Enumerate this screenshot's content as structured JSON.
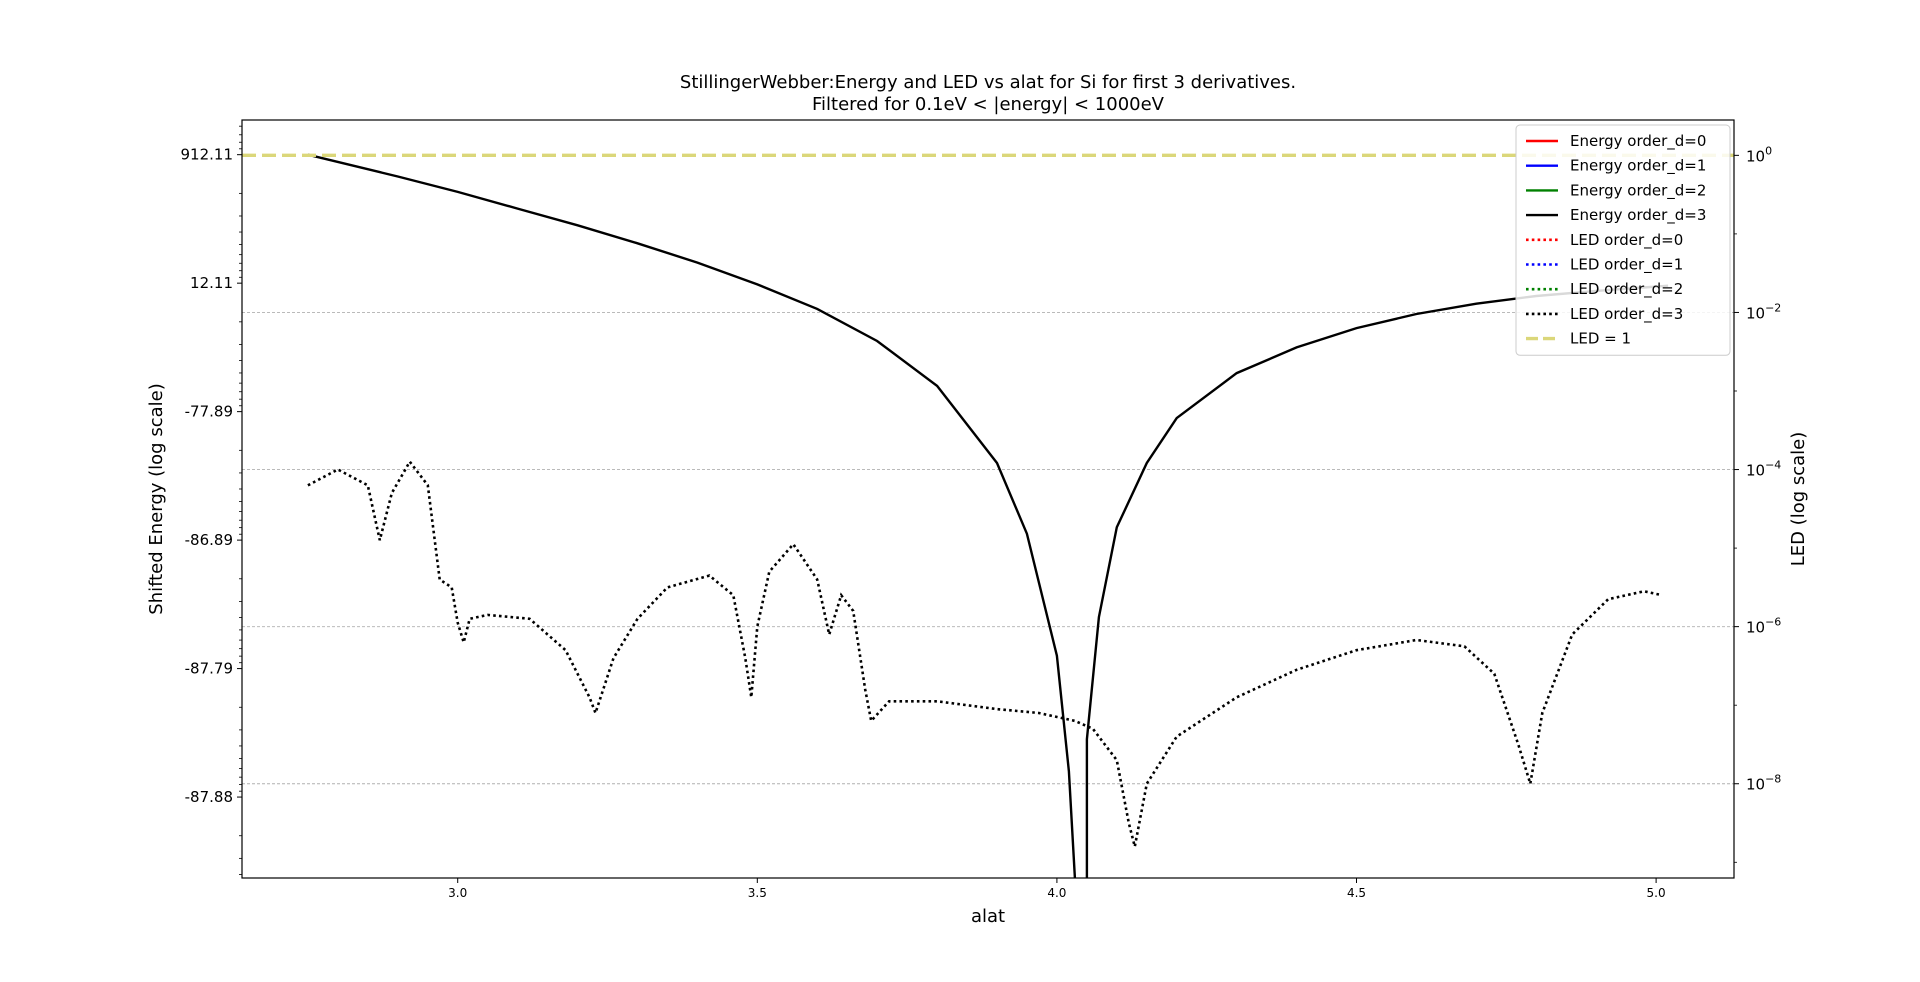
{
  "chart_data": {
    "type": "line",
    "title_line1": "StillingerWebber:Energy and LED vs alat for Si for first 3 derivatives.",
    "title_line2": "Filtered for 0.1eV < |energy| < 1000eV",
    "xlabel": "alat",
    "ylabel_left": "Shifted Energy (log scale)",
    "ylabel_right": "LED (log scale)",
    "xlim": [
      2.64,
      5.13
    ],
    "x_ticks": [
      3.0,
      3.5,
      4.0,
      4.5,
      5.0
    ],
    "x_tick_labels": [
      "3.0",
      "3.5",
      "4.0",
      "4.5",
      "5.0"
    ],
    "left_axis": {
      "scale": "symlog",
      "ticks": [
        {
          "label": "912.11",
          "pos": 0
        },
        {
          "label": "12.11",
          "pos": 1
        },
        {
          "label": "-77.89",
          "pos": 2
        },
        {
          "label": "-86.89",
          "pos": 3
        },
        {
          "label": "-87.79",
          "pos": 4
        },
        {
          "label": "-87.88",
          "pos": 5
        }
      ],
      "range_pos": [
        -0.27,
        5.63
      ]
    },
    "right_axis": {
      "scale": "log",
      "ticks": [
        {
          "label": "10^0",
          "base": "10",
          "exp": "0",
          "exp10": 0
        },
        {
          "label": "10^-2",
          "base": "10",
          "exp": "−2",
          "exp10": -2
        },
        {
          "label": "10^-4",
          "base": "10",
          "exp": "−4",
          "exp10": -4
        },
        {
          "label": "10^-6",
          "base": "10",
          "exp": "−6",
          "exp10": -6
        },
        {
          "label": "10^-8",
          "base": "10",
          "exp": "−8",
          "exp10": -8
        }
      ],
      "ylim_exp10": [
        -9.2,
        0.45
      ],
      "grid": "dashed horizontal lines at major ticks"
    },
    "legend": {
      "placement": "top-right",
      "entries": [
        {
          "label": "Energy order_d=0",
          "color": "#ff0000",
          "style": "solid"
        },
        {
          "label": "Energy order_d=1",
          "color": "#0000ff",
          "style": "solid"
        },
        {
          "label": "Energy order_d=2",
          "color": "#008000",
          "style": "solid"
        },
        {
          "label": "Energy order_d=3",
          "color": "#000000",
          "style": "solid"
        },
        {
          "label": "LED order_d=0",
          "color": "#ff0000",
          "style": "dotted"
        },
        {
          "label": "LED order_d=1",
          "color": "#0000ff",
          "style": "dotted"
        },
        {
          "label": "LED order_d=2",
          "color": "#008000",
          "style": "dotted"
        },
        {
          "label": "LED order_d=3",
          "color": "#000000",
          "style": "dotted"
        },
        {
          "label": "LED = 1",
          "color": "#dbd77a",
          "style": "dashed"
        }
      ]
    },
    "series": [
      {
        "name": "Energy order_d=3",
        "axis": "left",
        "color": "#000000",
        "style": "solid",
        "note": "energy values plotted on symlog left axis, expressed as tick-position units",
        "segments": [
          [
            [
              2.75,
              0.0
            ],
            [
              2.9,
              0.17
            ],
            [
              3.0,
              0.29
            ],
            [
              3.1,
              0.42
            ],
            [
              3.2,
              0.55
            ],
            [
              3.3,
              0.69
            ],
            [
              3.4,
              0.84
            ],
            [
              3.5,
              1.01
            ],
            [
              3.6,
              1.2
            ],
            [
              3.7,
              1.45
            ],
            [
              3.8,
              1.8
            ],
            [
              3.9,
              2.4
            ],
            [
              3.95,
              2.95
            ],
            [
              4.0,
              3.9
            ],
            [
              4.02,
              4.8
            ],
            [
              4.03,
              5.63
            ]
          ],
          [
            [
              4.05,
              5.63
            ],
            [
              4.05,
              4.55
            ],
            [
              4.07,
              3.6
            ],
            [
              4.1,
              2.9
            ],
            [
              4.15,
              2.4
            ],
            [
              4.2,
              2.05
            ],
            [
              4.3,
              1.7
            ],
            [
              4.4,
              1.5
            ],
            [
              4.5,
              1.35
            ],
            [
              4.6,
              1.24
            ],
            [
              4.7,
              1.16
            ],
            [
              4.8,
              1.1
            ],
            [
              4.9,
              1.06
            ],
            [
              5.02,
              1.02
            ]
          ]
        ]
      },
      {
        "name": "LED order_d=3",
        "axis": "right",
        "color": "#000000",
        "style": "dotted",
        "note": "y values are log10(LED)",
        "points": [
          [
            2.75,
            -4.2
          ],
          [
            2.8,
            -4.0
          ],
          [
            2.85,
            -4.2
          ],
          [
            2.87,
            -4.9
          ],
          [
            2.89,
            -4.3
          ],
          [
            2.92,
            -3.9
          ],
          [
            2.95,
            -4.2
          ],
          [
            2.97,
            -5.4
          ],
          [
            2.99,
            -5.5
          ],
          [
            3.0,
            -5.95
          ],
          [
            3.01,
            -6.2
          ],
          [
            3.02,
            -5.9
          ],
          [
            3.05,
            -5.85
          ],
          [
            3.12,
            -5.9
          ],
          [
            3.18,
            -6.3
          ],
          [
            3.22,
            -6.9
          ],
          [
            3.23,
            -7.1
          ],
          [
            3.26,
            -6.4
          ],
          [
            3.3,
            -5.9
          ],
          [
            3.35,
            -5.5
          ],
          [
            3.42,
            -5.35
          ],
          [
            3.46,
            -5.6
          ],
          [
            3.48,
            -6.4
          ],
          [
            3.49,
            -6.9
          ],
          [
            3.5,
            -6.0
          ],
          [
            3.52,
            -5.3
          ],
          [
            3.56,
            -4.95
          ],
          [
            3.6,
            -5.4
          ],
          [
            3.62,
            -6.1
          ],
          [
            3.64,
            -5.6
          ],
          [
            3.66,
            -5.8
          ],
          [
            3.68,
            -6.8
          ],
          [
            3.69,
            -7.2
          ],
          [
            3.72,
            -6.95
          ],
          [
            3.8,
            -6.95
          ],
          [
            3.9,
            -7.05
          ],
          [
            3.97,
            -7.1
          ],
          [
            4.03,
            -7.2
          ],
          [
            4.06,
            -7.3
          ],
          [
            4.1,
            -7.7
          ],
          [
            4.12,
            -8.5
          ],
          [
            4.13,
            -8.8
          ],
          [
            4.15,
            -8.0
          ],
          [
            4.2,
            -7.4
          ],
          [
            4.3,
            -6.9
          ],
          [
            4.4,
            -6.55
          ],
          [
            4.5,
            -6.3
          ],
          [
            4.6,
            -6.17
          ],
          [
            4.68,
            -6.25
          ],
          [
            4.73,
            -6.6
          ],
          [
            4.77,
            -7.5
          ],
          [
            4.79,
            -8.0
          ],
          [
            4.81,
            -7.1
          ],
          [
            4.86,
            -6.1
          ],
          [
            4.92,
            -5.65
          ],
          [
            4.98,
            -5.55
          ],
          [
            5.01,
            -5.6
          ]
        ]
      },
      {
        "name": "LED = 1",
        "axis": "right",
        "color": "#dbd77a",
        "style": "dashed",
        "points": [
          [
            2.64,
            0
          ],
          [
            5.13,
            0
          ]
        ]
      }
    ]
  }
}
